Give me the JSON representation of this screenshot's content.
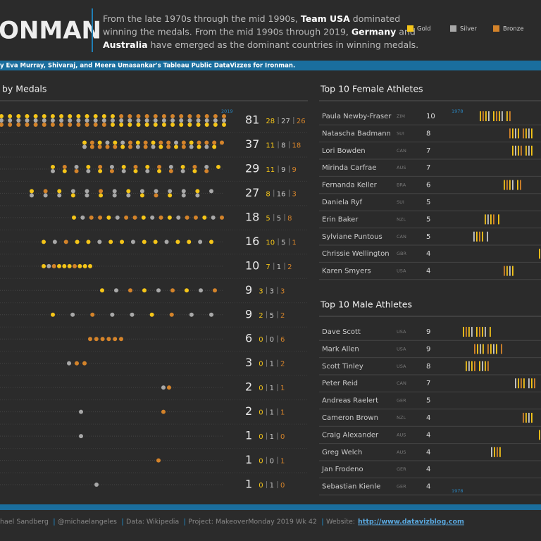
{
  "header": {
    "title": "ONMAN",
    "description": [
      [
        {
          "text": "From the late 1970s through the mid 1990s, ",
          "bold": false
        },
        {
          "text": "Team USA",
          "bold": true
        },
        {
          "text": " dominated",
          "bold": false
        }
      ],
      [
        {
          "text": "winning the medals. From the mid 1990s through 2019, ",
          "bold": false
        },
        {
          "text": "Germany",
          "bold": true
        },
        {
          "text": " and",
          "bold": false
        }
      ],
      [
        {
          "text": "Australia",
          "bold": true
        },
        {
          "text": " have emerged as the dominant countries in winning medals.",
          "bold": false
        }
      ]
    ],
    "legend": [
      {
        "name": "Gold",
        "color": "#f5c518"
      },
      {
        "name": "Silver",
        "color": "#a8a8a8"
      },
      {
        "name": "Bronze",
        "color": "#d4832a"
      }
    ],
    "credit": "y Eva Murray,  Shivaraj, and Meera Umasankar's Tableau Public DataVizzes for Ironman."
  },
  "medals_panel": {
    "title": "by Medals",
    "year_label": "2019",
    "rows": [
      {
        "total": 81,
        "gold": 28,
        "silver": 27,
        "bronze": 26
      },
      {
        "total": 37,
        "gold": 11,
        "silver": 8,
        "bronze": 18
      },
      {
        "total": 29,
        "gold": 11,
        "silver": 9,
        "bronze": 9
      },
      {
        "total": 27,
        "gold": 8,
        "silver": 16,
        "bronze": 3
      },
      {
        "total": 18,
        "gold": 5,
        "silver": 5,
        "bronze": 8
      },
      {
        "total": 16,
        "gold": 10,
        "silver": 5,
        "bronze": 1
      },
      {
        "total": 10,
        "gold": 7,
        "silver": 1,
        "bronze": 2
      },
      {
        "total": 9,
        "gold": 3,
        "silver": 3,
        "bronze": 3
      },
      {
        "total": 9,
        "gold": 2,
        "silver": 5,
        "bronze": 2
      },
      {
        "total": 6,
        "gold": 0,
        "silver": 0,
        "bronze": 6
      },
      {
        "total": 3,
        "gold": 0,
        "silver": 1,
        "bronze": 2
      },
      {
        "total": 2,
        "gold": 0,
        "silver": 1,
        "bronze": 1
      },
      {
        "total": 2,
        "gold": 0,
        "silver": 1,
        "bronze": 1
      },
      {
        "total": 1,
        "gold": 0,
        "silver": 1,
        "bronze": 0
      },
      {
        "total": 1,
        "gold": 0,
        "silver": 0,
        "bronze": 1
      },
      {
        "total": 1,
        "gold": 0,
        "silver": 1,
        "bronze": 0
      }
    ]
  },
  "female": {
    "title": "Top 10 Female Athletes",
    "year_label": "1978",
    "rows": [
      {
        "name": "Paula Newby-Fraser",
        "country": "ZIM",
        "count": 10
      },
      {
        "name": "Natascha Badmann",
        "country": "SUI",
        "count": 8
      },
      {
        "name": "Lori Bowden",
        "country": "CAN",
        "count": 7
      },
      {
        "name": "Mirinda Carfrae",
        "country": "AUS",
        "count": 7
      },
      {
        "name": "Fernanda Keller",
        "country": "BRA",
        "count": 6
      },
      {
        "name": "Daniela Ryf",
        "country": "SUI",
        "count": 5
      },
      {
        "name": "Erin Baker",
        "country": "NZL",
        "count": 5
      },
      {
        "name": "Sylviane Puntous",
        "country": "CAN",
        "count": 5
      },
      {
        "name": "Chrissie Wellington",
        "country": "GBR",
        "count": 4
      },
      {
        "name": "Karen Smyers",
        "country": "USA",
        "count": 4
      }
    ]
  },
  "male": {
    "title": "Top 10 Male Athletes",
    "year_label": "1978",
    "rows": [
      {
        "name": "Dave Scott",
        "country": "USA",
        "count": 9
      },
      {
        "name": "Mark Allen",
        "country": "USA",
        "count": 9
      },
      {
        "name": "Scott Tinley",
        "country": "USA",
        "count": 8
      },
      {
        "name": "Peter Reid",
        "country": "CAN",
        "count": 7
      },
      {
        "name": "Andreas Raelert",
        "country": "GER",
        "count": 5
      },
      {
        "name": "Cameron Brown",
        "country": "NZL",
        "count": 4
      },
      {
        "name": "Craig Alexander",
        "country": "AUS",
        "count": 4
      },
      {
        "name": "Greg Welch",
        "country": "AUS",
        "count": 4
      },
      {
        "name": "Jan Frodeno",
        "country": "GER",
        "count": 4
      },
      {
        "name": "Sebastian Kienle",
        "country": "GER",
        "count": 4
      }
    ]
  },
  "footer": [
    {
      "text": "hael Sandberg",
      "link": false
    },
    {
      "text": "@michaelangeles",
      "link": false
    },
    {
      "text": "Data: Wikipedia",
      "link": false
    },
    {
      "text": "Project: MakeoverMonday 2019 Wk 42",
      "link": false
    },
    {
      "text": "Website:",
      "link": false
    },
    {
      "text": "http://www.datavizblog.com",
      "link": true
    }
  ]
}
